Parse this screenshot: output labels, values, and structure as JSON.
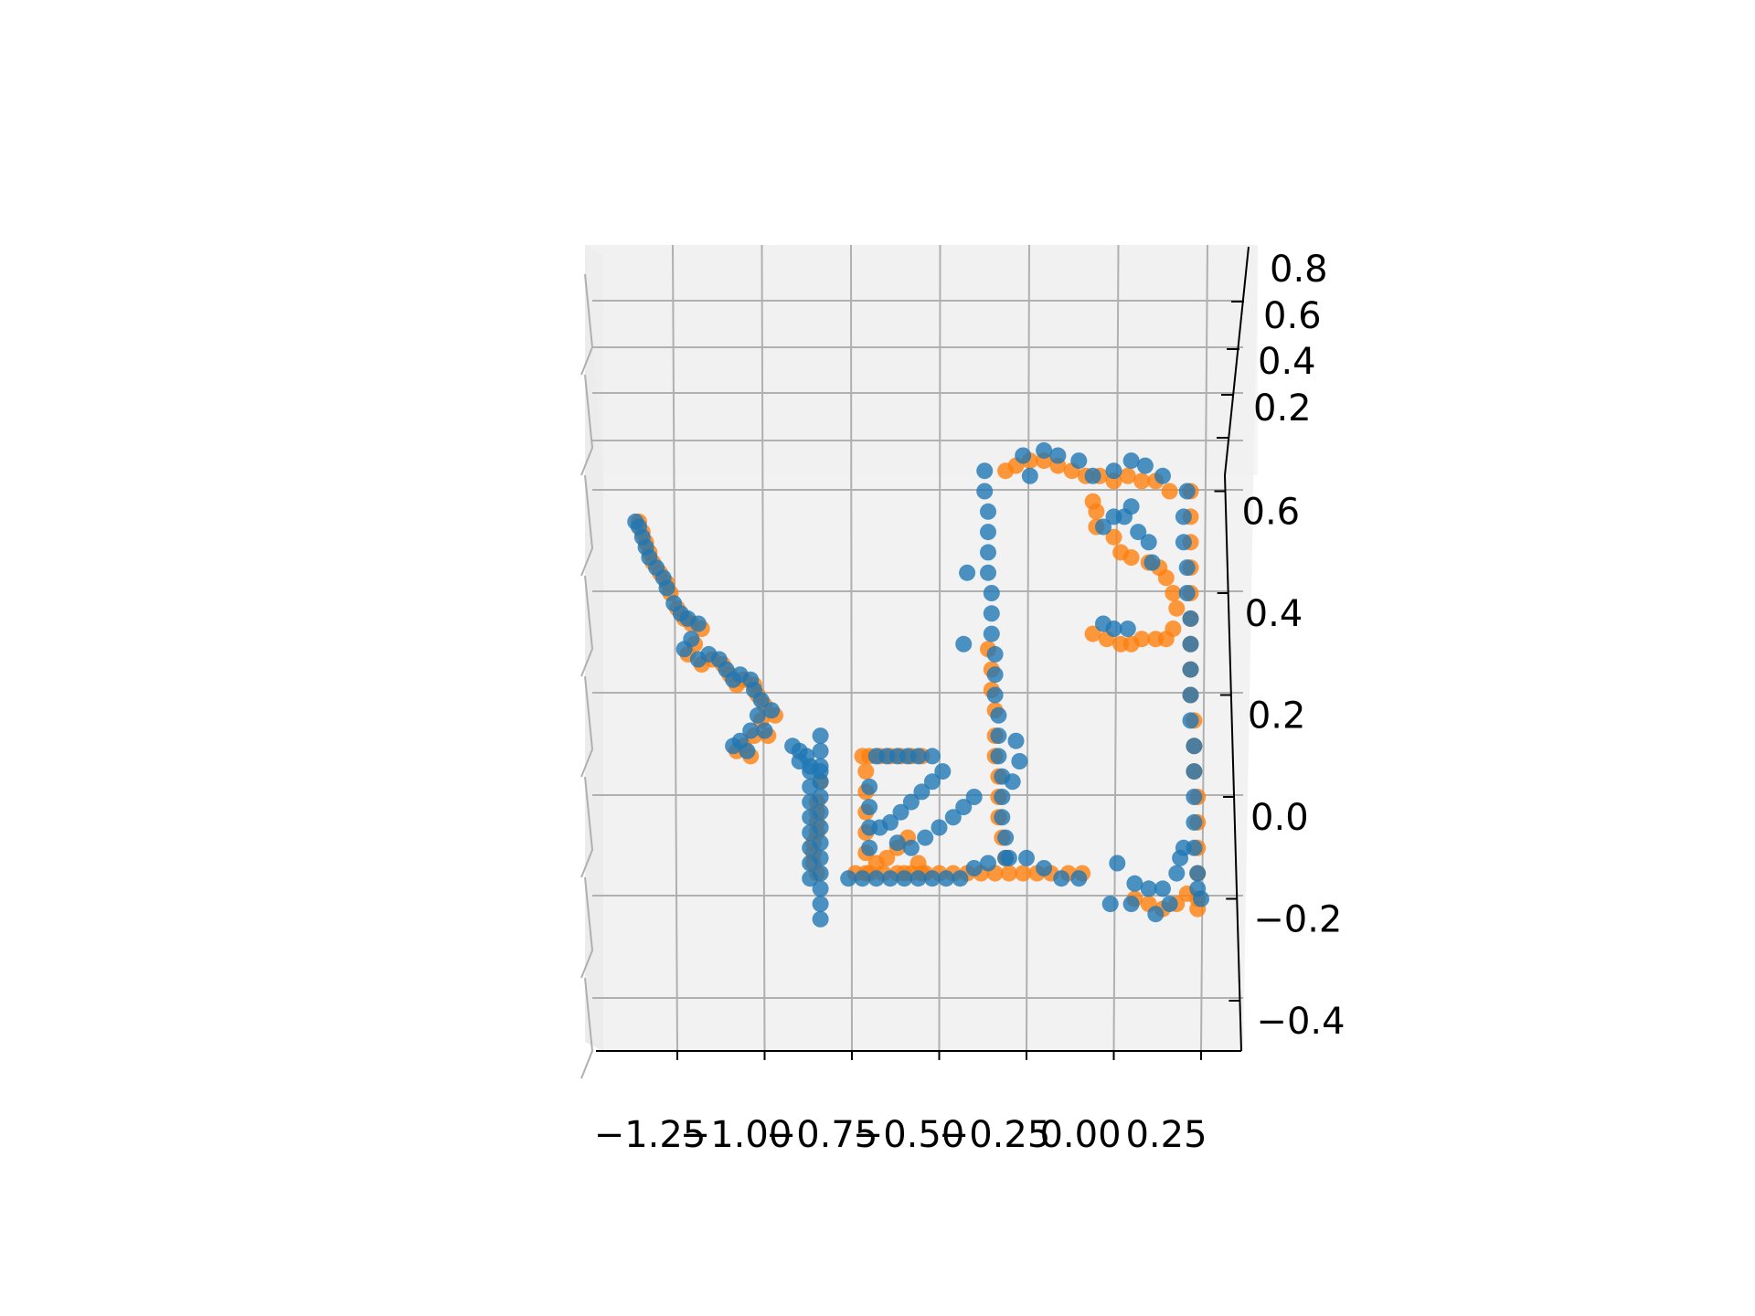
{
  "chart_data": {
    "type": "scatter",
    "projection": "3d",
    "grid": true,
    "pane_color": "#f2f2f2",
    "grid_color": "#b0b0b0",
    "x_ticks": [
      "−1.25",
      "−1.00",
      "−0.75",
      "−0.50",
      "−0.25",
      "0.00",
      "0.25"
    ],
    "z_ticks": [
      "−0.4",
      "−0.2",
      "0.0",
      "0.2",
      "0.4",
      "0.6"
    ],
    "y_ticks": [
      "0.2",
      "0.4",
      "0.6",
      "0.8"
    ],
    "xlim": [
      -1.48,
      0.35
    ],
    "zlim": [
      -0.45,
      0.67
    ],
    "series": [
      {
        "color": "#ff7f0e",
        "points": [
          [
            -1.36,
            0.54
          ],
          [
            -1.35,
            0.52
          ],
          [
            -1.34,
            0.5
          ],
          [
            -1.33,
            0.48
          ],
          [
            -1.32,
            0.46
          ],
          [
            -1.3,
            0.44
          ],
          [
            -1.28,
            0.42
          ],
          [
            -1.27,
            0.4
          ],
          [
            -1.25,
            0.37
          ],
          [
            -1.23,
            0.35
          ],
          [
            -1.21,
            0.34
          ],
          [
            -1.18,
            0.33
          ],
          [
            -1.2,
            0.3
          ],
          [
            -1.22,
            0.28
          ],
          [
            -1.18,
            0.26
          ],
          [
            -1.15,
            0.27
          ],
          [
            -1.12,
            0.26
          ],
          [
            -1.1,
            0.24
          ],
          [
            -1.06,
            0.23
          ],
          [
            -1.03,
            0.22
          ],
          [
            -1.08,
            0.22
          ],
          [
            -1.02,
            0.2
          ],
          [
            -1.0,
            0.18
          ],
          [
            -1.01,
            0.15
          ],
          [
            -1.03,
            0.12
          ],
          [
            -1.06,
            0.1
          ],
          [
            -1.08,
            0.09
          ],
          [
            -1.04,
            0.08
          ],
          [
            -0.99,
            0.12
          ],
          [
            -0.97,
            0.16
          ],
          [
            -0.84,
            0.03
          ],
          [
            -0.85,
            -0.01
          ],
          [
            -0.85,
            -0.03
          ],
          [
            -0.85,
            -0.05
          ],
          [
            -0.85,
            -0.07
          ],
          [
            -0.86,
            -0.09
          ],
          [
            -0.86,
            -0.11
          ],
          [
            -0.86,
            -0.13
          ],
          [
            -0.85,
            -0.15
          ],
          [
            -0.72,
            0.08
          ],
          [
            -0.7,
            0.08
          ],
          [
            -0.67,
            0.08
          ],
          [
            -0.64,
            0.08
          ],
          [
            -0.61,
            0.08
          ],
          [
            -0.58,
            0.08
          ],
          [
            -0.55,
            0.08
          ],
          [
            -0.71,
            0.05
          ],
          [
            -0.71,
            0.01
          ],
          [
            -0.71,
            -0.03
          ],
          [
            -0.71,
            -0.07
          ],
          [
            -0.71,
            -0.11
          ],
          [
            -0.71,
            -0.15
          ],
          [
            -0.68,
            -0.13
          ],
          [
            -0.65,
            -0.12
          ],
          [
            -0.62,
            -0.1
          ],
          [
            -0.59,
            -0.08
          ],
          [
            -0.56,
            -0.13
          ],
          [
            -0.6,
            -0.15
          ],
          [
            -0.55,
            -0.15
          ],
          [
            -0.74,
            -0.15
          ],
          [
            -0.7,
            -0.15
          ],
          [
            -0.66,
            -0.15
          ],
          [
            -0.62,
            -0.15
          ],
          [
            -0.58,
            -0.15
          ],
          [
            -0.54,
            -0.15
          ],
          [
            -0.5,
            -0.15
          ],
          [
            -0.46,
            -0.15
          ],
          [
            -0.42,
            -0.15
          ],
          [
            -0.38,
            -0.15
          ],
          [
            -0.34,
            -0.15
          ],
          [
            -0.3,
            -0.15
          ],
          [
            -0.26,
            -0.15
          ],
          [
            -0.22,
            -0.15
          ],
          [
            -0.18,
            -0.15
          ],
          [
            -0.13,
            -0.15
          ],
          [
            -0.09,
            -0.15
          ],
          [
            -0.36,
            0.29
          ],
          [
            -0.35,
            0.25
          ],
          [
            -0.35,
            0.21
          ],
          [
            -0.34,
            0.17
          ],
          [
            -0.34,
            0.12
          ],
          [
            -0.34,
            0.08
          ],
          [
            -0.33,
            0.04
          ],
          [
            -0.33,
            0.0
          ],
          [
            -0.33,
            -0.04
          ],
          [
            -0.32,
            -0.08
          ],
          [
            -0.31,
            -0.12
          ],
          [
            -0.31,
            0.64
          ],
          [
            -0.28,
            0.65
          ],
          [
            -0.24,
            0.66
          ],
          [
            -0.2,
            0.66
          ],
          [
            -0.16,
            0.65
          ],
          [
            -0.12,
            0.64
          ],
          [
            -0.08,
            0.63
          ],
          [
            -0.04,
            0.63
          ],
          [
            0.0,
            0.62
          ],
          [
            0.04,
            0.63
          ],
          [
            0.08,
            0.62
          ],
          [
            0.12,
            0.62
          ],
          [
            0.16,
            0.6
          ],
          [
            -0.06,
            0.58
          ],
          [
            -0.05,
            0.56
          ],
          [
            -0.05,
            0.53
          ],
          [
            0.0,
            0.51
          ],
          [
            0.02,
            0.48
          ],
          [
            0.05,
            0.47
          ],
          [
            0.1,
            0.46
          ],
          [
            0.13,
            0.45
          ],
          [
            0.15,
            0.43
          ],
          [
            0.17,
            0.4
          ],
          [
            0.18,
            0.37
          ],
          [
            0.17,
            0.33
          ],
          [
            0.15,
            0.31
          ],
          [
            0.12,
            0.31
          ],
          [
            0.08,
            0.31
          ],
          [
            0.05,
            0.3
          ],
          [
            0.02,
            0.3
          ],
          [
            -0.02,
            0.31
          ],
          [
            -0.06,
            0.32
          ],
          [
            0.22,
            0.6
          ],
          [
            0.22,
            0.55
          ],
          [
            0.22,
            0.5
          ],
          [
            0.22,
            0.45
          ],
          [
            0.22,
            0.4
          ],
          [
            0.22,
            0.35
          ],
          [
            0.22,
            0.3
          ],
          [
            0.22,
            0.25
          ],
          [
            0.22,
            0.2
          ],
          [
            0.23,
            0.15
          ],
          [
            0.23,
            0.1
          ],
          [
            0.23,
            0.05
          ],
          [
            0.24,
            0.0
          ],
          [
            0.24,
            -0.05
          ],
          [
            0.24,
            -0.1
          ],
          [
            0.24,
            -0.15
          ],
          [
            0.24,
            -0.2
          ],
          [
            0.24,
            -0.22
          ],
          [
            0.06,
            -0.2
          ],
          [
            0.1,
            -0.21
          ],
          [
            0.14,
            -0.22
          ],
          [
            0.18,
            -0.21
          ],
          [
            0.21,
            -0.19
          ]
        ]
      },
      {
        "color": "#1f77b4",
        "points": [
          [
            -1.37,
            0.54
          ],
          [
            -1.36,
            0.53
          ],
          [
            -1.35,
            0.51
          ],
          [
            -1.34,
            0.49
          ],
          [
            -1.33,
            0.47
          ],
          [
            -1.31,
            0.45
          ],
          [
            -1.29,
            0.43
          ],
          [
            -1.28,
            0.41
          ],
          [
            -1.26,
            0.38
          ],
          [
            -1.24,
            0.36
          ],
          [
            -1.22,
            0.35
          ],
          [
            -1.19,
            0.34
          ],
          [
            -1.21,
            0.31
          ],
          [
            -1.23,
            0.29
          ],
          [
            -1.19,
            0.27
          ],
          [
            -1.16,
            0.28
          ],
          [
            -1.13,
            0.27
          ],
          [
            -1.11,
            0.25
          ],
          [
            -1.07,
            0.24
          ],
          [
            -1.04,
            0.23
          ],
          [
            -1.09,
            0.23
          ],
          [
            -1.03,
            0.21
          ],
          [
            -1.01,
            0.19
          ],
          [
            -1.02,
            0.16
          ],
          [
            -1.04,
            0.13
          ],
          [
            -1.07,
            0.11
          ],
          [
            -1.09,
            0.1
          ],
          [
            -1.05,
            0.09
          ],
          [
            -1.0,
            0.13
          ],
          [
            -0.98,
            0.17
          ],
          [
            -0.92,
            0.1
          ],
          [
            -0.9,
            0.09
          ],
          [
            -0.88,
            0.08
          ],
          [
            -0.9,
            0.07
          ],
          [
            -0.87,
            0.06
          ],
          [
            -0.84,
            0.05
          ],
          [
            -0.84,
            0.12
          ],
          [
            -0.84,
            0.09
          ],
          [
            -0.84,
            0.06
          ],
          [
            -0.84,
            0.03
          ],
          [
            -0.84,
            0.0
          ],
          [
            -0.84,
            -0.03
          ],
          [
            -0.84,
            -0.06
          ],
          [
            -0.84,
            -0.09
          ],
          [
            -0.84,
            -0.12
          ],
          [
            -0.84,
            -0.15
          ],
          [
            -0.84,
            -0.18
          ],
          [
            -0.84,
            -0.21
          ],
          [
            -0.84,
            -0.24
          ],
          [
            -0.87,
            0.05
          ],
          [
            -0.87,
            0.02
          ],
          [
            -0.87,
            -0.01
          ],
          [
            -0.87,
            -0.04
          ],
          [
            -0.87,
            -0.07
          ],
          [
            -0.87,
            -0.1
          ],
          [
            -0.87,
            -0.13
          ],
          [
            -0.87,
            -0.16
          ],
          [
            -0.68,
            0.08
          ],
          [
            -0.65,
            0.08
          ],
          [
            -0.62,
            0.08
          ],
          [
            -0.59,
            0.08
          ],
          [
            -0.56,
            0.08
          ],
          [
            -0.52,
            0.08
          ],
          [
            -0.7,
            0.02
          ],
          [
            -0.7,
            -0.02
          ],
          [
            -0.7,
            -0.06
          ],
          [
            -0.7,
            -0.1
          ],
          [
            -0.67,
            -0.06
          ],
          [
            -0.64,
            -0.05
          ],
          [
            -0.61,
            -0.03
          ],
          [
            -0.58,
            -0.01
          ],
          [
            -0.55,
            0.01
          ],
          [
            -0.52,
            0.03
          ],
          [
            -0.49,
            0.05
          ],
          [
            -0.62,
            -0.09
          ],
          [
            -0.58,
            -0.1
          ],
          [
            -0.54,
            -0.08
          ],
          [
            -0.5,
            -0.06
          ],
          [
            -0.46,
            -0.04
          ],
          [
            -0.43,
            -0.02
          ],
          [
            -0.4,
            0.0
          ],
          [
            -0.76,
            -0.16
          ],
          [
            -0.72,
            -0.16
          ],
          [
            -0.68,
            -0.16
          ],
          [
            -0.64,
            -0.16
          ],
          [
            -0.6,
            -0.16
          ],
          [
            -0.56,
            -0.16
          ],
          [
            -0.52,
            -0.16
          ],
          [
            -0.48,
            -0.16
          ],
          [
            -0.44,
            -0.16
          ],
          [
            -0.4,
            -0.14
          ],
          [
            -0.36,
            -0.13
          ],
          [
            -0.3,
            -0.12
          ],
          [
            -0.25,
            -0.12
          ],
          [
            -0.2,
            -0.14
          ],
          [
            -0.15,
            -0.16
          ],
          [
            -0.1,
            -0.16
          ],
          [
            -0.37,
            0.64
          ],
          [
            -0.37,
            0.6
          ],
          [
            -0.36,
            0.56
          ],
          [
            -0.36,
            0.52
          ],
          [
            -0.36,
            0.48
          ],
          [
            -0.36,
            0.44
          ],
          [
            -0.35,
            0.4
          ],
          [
            -0.35,
            0.36
          ],
          [
            -0.35,
            0.32
          ],
          [
            -0.34,
            0.28
          ],
          [
            -0.34,
            0.24
          ],
          [
            -0.34,
            0.2
          ],
          [
            -0.33,
            0.16
          ],
          [
            -0.33,
            0.12
          ],
          [
            -0.33,
            0.08
          ],
          [
            -0.32,
            0.04
          ],
          [
            -0.32,
            0.0
          ],
          [
            -0.32,
            -0.04
          ],
          [
            -0.31,
            -0.08
          ],
          [
            -0.31,
            -0.12
          ],
          [
            -0.42,
            0.44
          ],
          [
            -0.43,
            0.3
          ],
          [
            -0.28,
            0.11
          ],
          [
            -0.27,
            0.07
          ],
          [
            -0.29,
            0.03
          ],
          [
            -0.26,
            0.67
          ],
          [
            -0.24,
            0.63
          ],
          [
            -0.2,
            0.68
          ],
          [
            -0.16,
            0.67
          ],
          [
            -0.1,
            0.66
          ],
          [
            -0.06,
            0.63
          ],
          [
            0.0,
            0.64
          ],
          [
            0.05,
            0.66
          ],
          [
            0.09,
            0.65
          ],
          [
            0.14,
            0.63
          ],
          [
            0.05,
            0.57
          ],
          [
            0.03,
            0.55
          ],
          [
            0.0,
            0.55
          ],
          [
            -0.03,
            0.53
          ],
          [
            0.07,
            0.52
          ],
          [
            0.1,
            0.5
          ],
          [
            0.11,
            0.46
          ],
          [
            -0.03,
            0.34
          ],
          [
            0.0,
            0.33
          ],
          [
            0.04,
            0.33
          ],
          [
            0.21,
            0.6
          ],
          [
            0.2,
            0.55
          ],
          [
            0.2,
            0.5
          ],
          [
            0.21,
            0.45
          ],
          [
            0.21,
            0.4
          ],
          [
            0.22,
            0.35
          ],
          [
            0.22,
            0.3
          ],
          [
            0.22,
            0.25
          ],
          [
            0.22,
            0.2
          ],
          [
            0.22,
            0.15
          ],
          [
            0.23,
            0.1
          ],
          [
            0.23,
            0.05
          ],
          [
            0.23,
            0.0
          ],
          [
            0.23,
            -0.05
          ],
          [
            0.23,
            -0.1
          ],
          [
            0.24,
            -0.15
          ],
          [
            0.24,
            -0.18
          ],
          [
            0.25,
            -0.2
          ],
          [
            0.01,
            -0.13
          ],
          [
            0.06,
            -0.17
          ],
          [
            0.1,
            -0.18
          ],
          [
            0.14,
            -0.18
          ],
          [
            0.18,
            -0.15
          ],
          [
            0.19,
            -0.12
          ],
          [
            0.05,
            -0.21
          ],
          [
            0.12,
            -0.23
          ],
          [
            0.16,
            -0.21
          ],
          [
            0.2,
            -0.1
          ],
          [
            -0.01,
            -0.21
          ]
        ]
      }
    ]
  }
}
